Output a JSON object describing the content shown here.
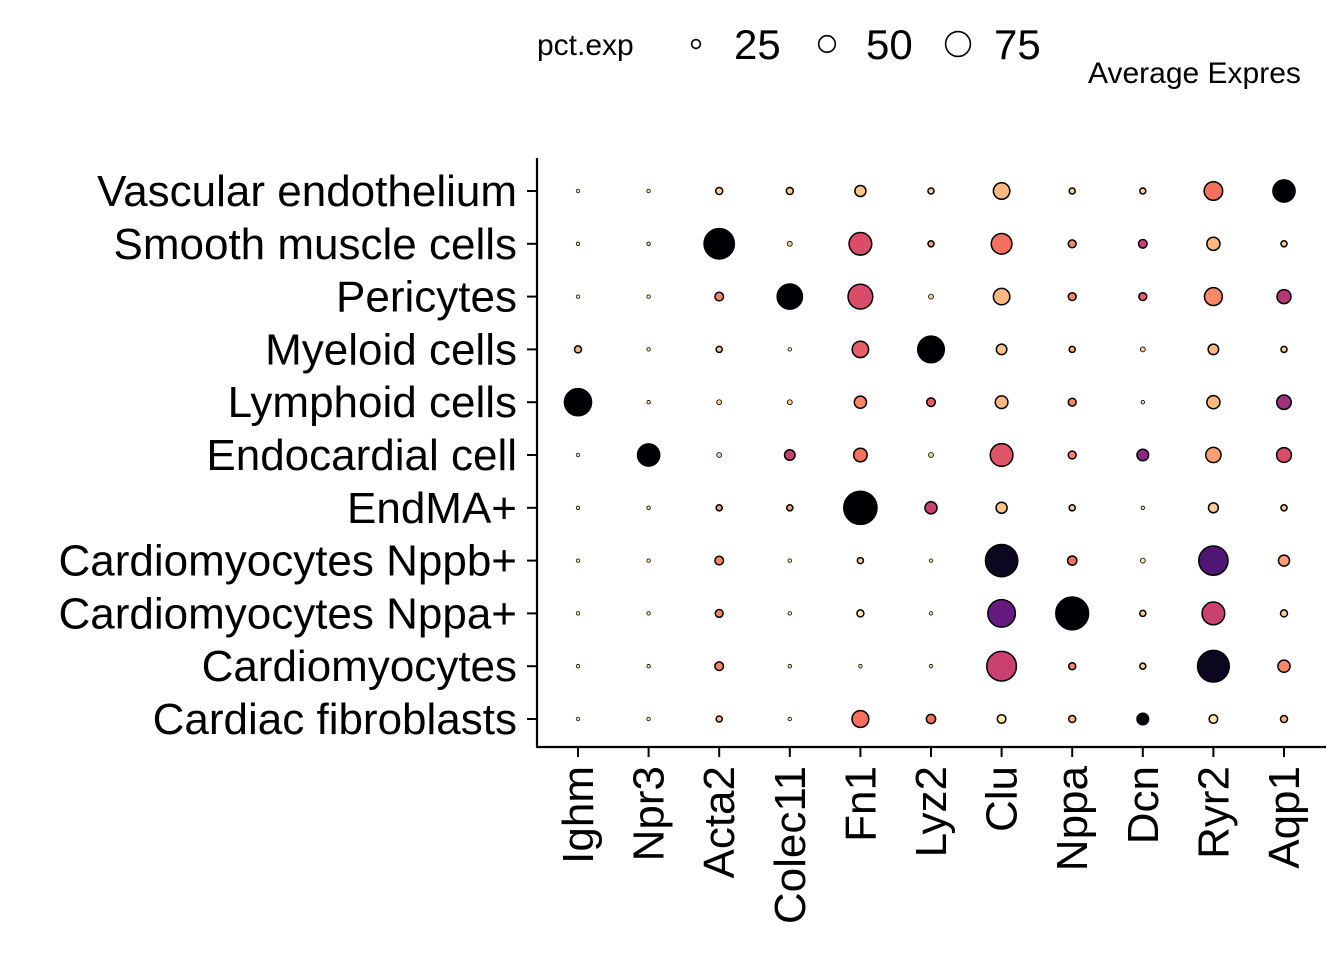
{
  "chart_data": {
    "type": "dotplot",
    "genes": [
      "Ighm",
      "Npr3",
      "Acta2",
      "Colec11",
      "Fn1",
      "Lyz2",
      "Clu",
      "Nppa",
      "Dcn",
      "Ryr2",
      "Aqp1"
    ],
    "cell_types": [
      "Vascular endothelium",
      "Smooth muscle cells",
      "Pericytes",
      "Myeloid cells",
      "Lymphoid cells",
      "Endocardial cell",
      "EndMA+",
      "Cardiomyocytes Nppb+",
      "Cardiomyocytes Nppa+",
      "Cardiomyocytes",
      "Cardiac fibroblasts"
    ],
    "pct_exp": [
      [
        1,
        1,
        4,
        4,
        10,
        3,
        22,
        3,
        3,
        28,
        40
      ],
      [
        1,
        1,
        75,
        2,
        42,
        3,
        35,
        5,
        6,
        14,
        3
      ],
      [
        1,
        1,
        6,
        52,
        50,
        2,
        22,
        5,
        5,
        26,
        16
      ],
      [
        4,
        1,
        3,
        1,
        22,
        58,
        9,
        3,
        2,
        9,
        3
      ],
      [
        60,
        1,
        2,
        2,
        12,
        6,
        13,
        5,
        1,
        14,
        17
      ],
      [
        1,
        40,
        2,
        9,
        15,
        2,
        42,
        5,
        11,
        19,
        18
      ],
      [
        1,
        1,
        3,
        3,
        90,
        12,
        10,
        3,
        1,
        8,
        3
      ],
      [
        1,
        1,
        6,
        1,
        3,
        1,
        85,
        7,
        2,
        70,
        10
      ],
      [
        1,
        1,
        5,
        1,
        4,
        1,
        62,
        88,
        3,
        42,
        4
      ],
      [
        1,
        1,
        6,
        1,
        1,
        1,
        72,
        4,
        3,
        82,
        12
      ],
      [
        1,
        1,
        3,
        1,
        23,
        7,
        6,
        4,
        11,
        6,
        4
      ]
    ],
    "avg_exp": [
      [
        0.05,
        0.05,
        0.1,
        0.1,
        0.12,
        0.1,
        0.15,
        0.1,
        0.1,
        0.3,
        1.0
      ],
      [
        0.05,
        0.05,
        1.0,
        0.1,
        0.4,
        0.2,
        0.3,
        0.25,
        0.45,
        0.15,
        0.1
      ],
      [
        0.05,
        0.05,
        0.25,
        1.0,
        0.4,
        0.1,
        0.15,
        0.25,
        0.35,
        0.25,
        0.5
      ],
      [
        0.15,
        0.05,
        0.1,
        0.05,
        0.35,
        1.0,
        0.12,
        0.15,
        0.1,
        0.15,
        0.1
      ],
      [
        1.0,
        0.05,
        0.1,
        0.1,
        0.25,
        0.35,
        0.15,
        0.25,
        0.05,
        0.15,
        0.55
      ],
      [
        0.05,
        1.0,
        0.1,
        0.45,
        0.3,
        0.1,
        0.38,
        0.25,
        0.6,
        0.2,
        0.4
      ],
      [
        0.05,
        0.05,
        0.2,
        0.2,
        1.0,
        0.45,
        0.12,
        0.1,
        0.05,
        0.1,
        0.1
      ],
      [
        0.05,
        0.05,
        0.25,
        0.05,
        0.1,
        0.05,
        0.95,
        0.3,
        0.05,
        0.75,
        0.2
      ],
      [
        0.05,
        0.05,
        0.25,
        0.05,
        0.05,
        0.05,
        0.7,
        1.0,
        0.1,
        0.45,
        0.1
      ],
      [
        0.05,
        0.05,
        0.25,
        0.05,
        0.05,
        0.05,
        0.45,
        0.25,
        0.1,
        0.95,
        0.25
      ],
      [
        0.05,
        0.05,
        0.15,
        0.05,
        0.3,
        0.3,
        0.05,
        0.15,
        1.0,
        0.05,
        0.15
      ]
    ],
    "size_legend": {
      "title": "pct.exp",
      "values": [
        25,
        50,
        75
      ]
    },
    "color_legend": {
      "title": "Average Expres"
    },
    "colors": {
      "palette": [
        "#fcfdbf",
        "#feba80",
        "#f8765c",
        "#d3436e",
        "#982d80",
        "#5f187f",
        "#221150",
        "#000004"
      ],
      "outline": "#000000",
      "axis": "#000000"
    },
    "grid": false
  }
}
